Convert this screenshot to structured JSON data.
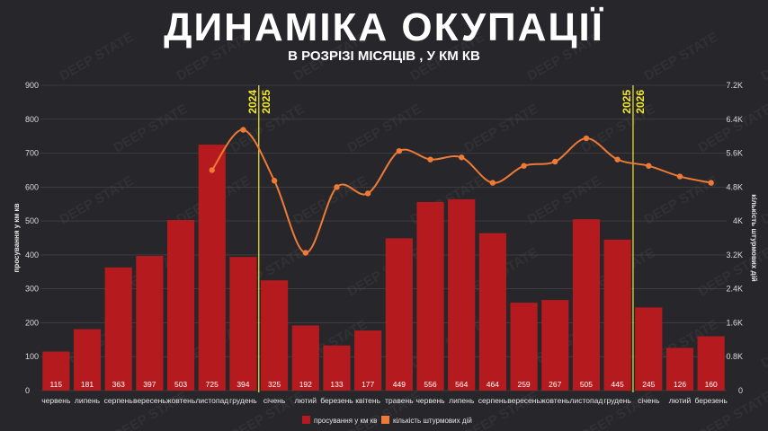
{
  "header": {
    "title": "ДИНАМІКА ОКУПАЦІЇ",
    "subtitle": "В РОЗРІЗІ МІСЯЦІВ , У КМ КВ"
  },
  "watermark_text": "DEEP STATE",
  "colors": {
    "background": "#27272b",
    "bar": "#b51b1e",
    "line": "#ef7a36",
    "year_divider": "#f2e72c",
    "grid": "#4a4a50"
  },
  "chart_data": {
    "type": "bar",
    "categories": [
      "червень",
      "липень",
      "серпень",
      "вересень",
      "жовтень",
      "листопад",
      "грудень",
      "січень",
      "лютий",
      "березень",
      "квітень",
      "травень",
      "червень",
      "липень",
      "серпень",
      "вересень",
      "жовтень",
      "листопад",
      "грудень",
      "січень",
      "лютий",
      "березень"
    ],
    "series": [
      {
        "name": "просування у км кв",
        "type": "bar",
        "axis": "left",
        "values": [
          115,
          181,
          363,
          397,
          503,
          725,
          394,
          325,
          192,
          133,
          177,
          449,
          556,
          564,
          464,
          259,
          267,
          505,
          445,
          245,
          126,
          160
        ]
      },
      {
        "name": "кількість штурмових дій",
        "type": "line",
        "axis": "right",
        "values": [
          null,
          null,
          null,
          null,
          null,
          5200,
          6150,
          4950,
          3250,
          4800,
          4650,
          5650,
          5450,
          5500,
          4900,
          5300,
          5400,
          5950,
          5450,
          5300,
          5050,
          4900
        ]
      }
    ],
    "ylabel": "просування у км кв",
    "y2label": "кількість штурмових дій",
    "ylim": [
      0,
      900
    ],
    "y2lim": [
      0,
      7200
    ],
    "yticks": [
      "0",
      "100",
      "200",
      "300",
      "400",
      "500",
      "600",
      "700",
      "800",
      "900"
    ],
    "y2ticks": [
      "0",
      "0.8K",
      "1.6K",
      "2.4K",
      "3.2K",
      "4K",
      "4.8K",
      "5.6K",
      "6.4K",
      "7.2K"
    ],
    "year_dividers": [
      {
        "after_index": 6,
        "left_label": "2024",
        "right_label": "2025"
      },
      {
        "after_index": 18,
        "left_label": "2025",
        "right_label": "2026"
      }
    ],
    "legend": {
      "position": "bottom-center",
      "items": [
        "просування у км кв",
        "кількість штурмових дій"
      ]
    },
    "grid": true,
    "data_labels": true
  }
}
